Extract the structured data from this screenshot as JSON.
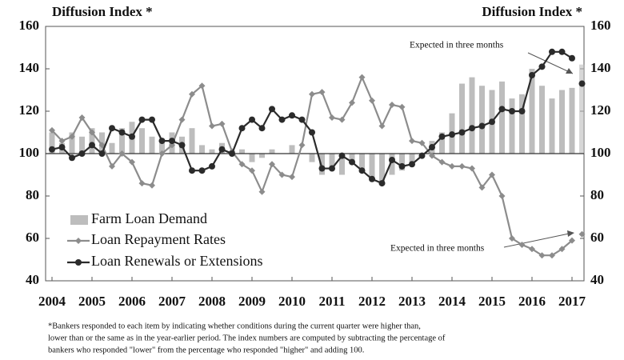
{
  "chart_data": {
    "type": "combo",
    "y_label": "Diffusion Index *",
    "y2_label": "Diffusion Index *",
    "x": [
      2004,
      2004.25,
      2004.5,
      2004.75,
      2005,
      2005.25,
      2005.5,
      2005.75,
      2006,
      2006.25,
      2006.5,
      2006.75,
      2007,
      2007.25,
      2007.5,
      2007.75,
      2008,
      2008.25,
      2008.5,
      2008.75,
      2009,
      2009.25,
      2009.5,
      2009.75,
      2010,
      2010.25,
      2010.5,
      2010.75,
      2011,
      2011.25,
      2011.5,
      2011.75,
      2012,
      2012.25,
      2012.5,
      2012.75,
      2013,
      2013.25,
      2013.5,
      2013.75,
      2014,
      2014.25,
      2014.5,
      2014.75,
      2015,
      2015.25,
      2015.5,
      2015.75,
      2016,
      2016.25,
      2016.5,
      2016.75,
      2017
    ],
    "expected_x": 2017.25,
    "series": [
      {
        "name": "Farm Loan Demand",
        "type": "bar",
        "color": "#bdbdbd",
        "values": [
          110,
          105,
          110,
          108,
          112,
          110,
          105,
          112,
          115,
          112,
          108,
          105,
          110,
          108,
          112,
          104,
          102,
          105,
          100,
          102,
          96,
          98,
          102,
          100,
          104,
          100,
          96,
          90,
          92,
          90,
          95,
          92,
          88,
          86,
          90,
          92,
          95,
          100,
          106,
          110,
          119,
          133,
          136,
          132,
          130,
          134,
          126,
          128,
          140,
          132,
          126,
          130,
          131
        ],
        "expected": 142
      },
      {
        "name": "Loan Repayment Rates",
        "type": "line",
        "marker": "diamond",
        "color": "#8c8c8c",
        "values": [
          111,
          106,
          108,
          117,
          110,
          104,
          94,
          100,
          96,
          86,
          85,
          100,
          104,
          116,
          128,
          132,
          113,
          114,
          101,
          95,
          92,
          82,
          95,
          90,
          89,
          104,
          128,
          129,
          117,
          116,
          124,
          136,
          125,
          113,
          123,
          122,
          106,
          105,
          99,
          96,
          94,
          94,
          93,
          84,
          90,
          80,
          60,
          57,
          55,
          52,
          52,
          55,
          59
        ],
        "expected": 62
      },
      {
        "name": "Loan Renewals or Extensions",
        "type": "line",
        "marker": "circle",
        "color": "#2b2b2b",
        "values": [
          102,
          103,
          98,
          100,
          104,
          100,
          112,
          110,
          108,
          116,
          116,
          106,
          106,
          104,
          92,
          92,
          94,
          102,
          100,
          112,
          116,
          112,
          121,
          116,
          118,
          116,
          110,
          93,
          93,
          99,
          96,
          92,
          88,
          86,
          97,
          94,
          95,
          99,
          103,
          108,
          109,
          110,
          112,
          113,
          115,
          121,
          120,
          120,
          137,
          141,
          148,
          148,
          145
        ],
        "expected": 133
      }
    ],
    "xlim": [
      2003.84,
      2017.3
    ],
    "xticks": [
      2004,
      2005,
      2006,
      2007,
      2008,
      2009,
      2010,
      2011,
      2012,
      2013,
      2014,
      2015,
      2016,
      2017
    ],
    "ylim": [
      40,
      160
    ],
    "yticks": [
      40,
      60,
      80,
      100,
      120,
      140,
      160
    ],
    "y2lim": [
      40,
      160
    ],
    "y2ticks": [
      40,
      60,
      80,
      100,
      120,
      140,
      160
    ],
    "baseline": 100,
    "annotations": [
      "Expected in three months",
      "Expected in three months"
    ],
    "footnote": [
      "*Bankers responded to each item by indicating whether conditions during the current quarter were higher than,",
      "lower than or the same as in the year-earlier period.  The index numbers are computed by subtracting the percentage of",
      "bankers who responded \"lower\" from the percentage who responded \"higher\" and adding 100."
    ]
  }
}
